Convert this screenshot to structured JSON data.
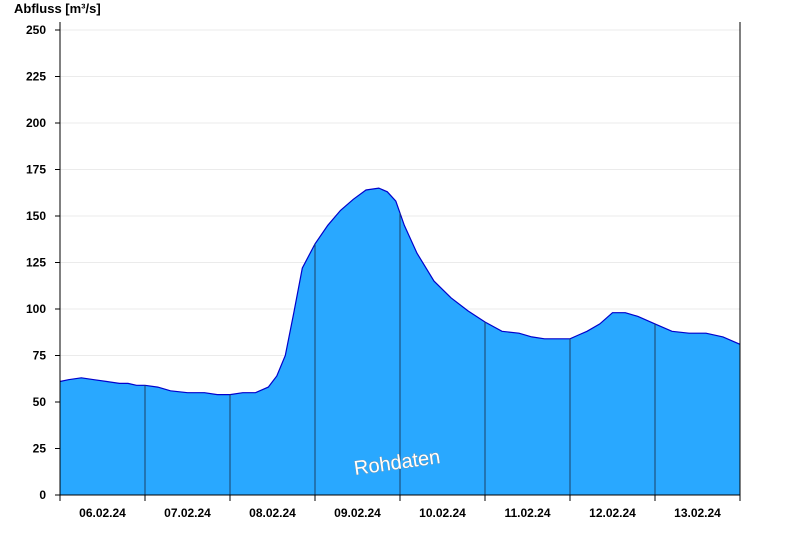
{
  "chart_data": {
    "type": "area",
    "title": "",
    "ylabel": "Abfluss [m³/s]",
    "xlabel": "",
    "ylim": [
      0,
      250
    ],
    "yticks": [
      0,
      25,
      50,
      75,
      100,
      125,
      150,
      175,
      200,
      225,
      250
    ],
    "x_range_days": [
      0,
      8
    ],
    "day_labels": [
      "06.02.24",
      "07.02.24",
      "08.02.24",
      "09.02.24",
      "10.02.24",
      "11.02.24",
      "12.02.24",
      "13.02.24"
    ],
    "grid": true,
    "annotation": "Rohdaten",
    "fill_color": "#29a8ff",
    "line_color": "#0000cc",
    "series": [
      {
        "x": [
          0,
          0.1,
          0.25,
          0.4,
          0.55,
          0.7,
          0.8,
          0.9,
          1.0,
          1.15,
          1.3,
          1.5,
          1.7,
          1.85,
          2.0,
          2.15,
          2.3,
          2.45,
          2.55,
          2.65,
          2.75,
          2.85,
          3.0,
          3.15,
          3.3,
          3.45,
          3.6,
          3.75,
          3.85,
          3.95,
          4.05,
          4.2,
          4.4,
          4.6,
          4.8,
          5.0,
          5.2,
          5.4,
          5.55,
          5.7,
          5.85,
          6.0,
          6.1,
          6.2,
          6.35,
          6.5,
          6.65,
          6.8,
          7.0,
          7.2,
          7.4,
          7.6,
          7.8,
          8.0
        ],
        "y": [
          61,
          62,
          63,
          62,
          61,
          60,
          60,
          59,
          59,
          58,
          56,
          55,
          55,
          54,
          54,
          55,
          55,
          58,
          64,
          75,
          98,
          122,
          135,
          145,
          153,
          159,
          164,
          165,
          163,
          158,
          145,
          130,
          115,
          106,
          99,
          93,
          88,
          87,
          85,
          84,
          84,
          84,
          86,
          88,
          92,
          98,
          98,
          96,
          92,
          88,
          87,
          87,
          85,
          81
        ]
      }
    ]
  }
}
